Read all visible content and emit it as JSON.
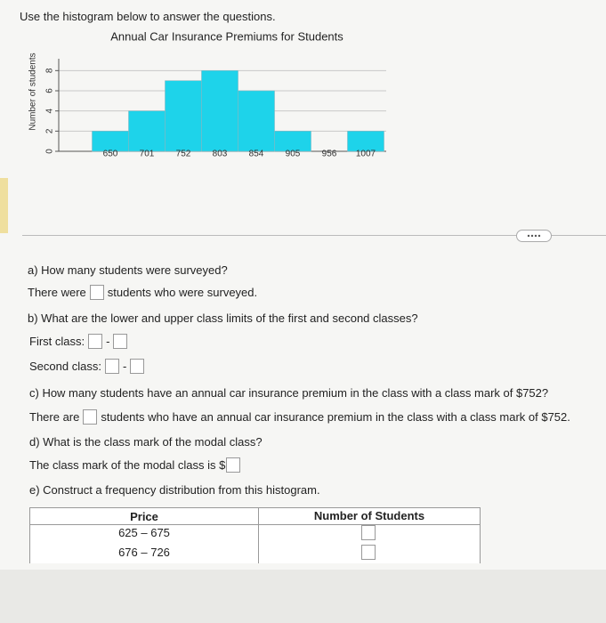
{
  "instruction": "Use the histogram below to answer the questions.",
  "chart_data": {
    "type": "histogram",
    "title": "Annual Car Insurance Premiums for Students",
    "ylabel": "Number of students",
    "categories": [
      "650",
      "701",
      "752",
      "803",
      "854",
      "905",
      "956",
      "1007"
    ],
    "values": [
      2,
      4,
      7,
      8,
      6,
      2,
      0,
      2
    ],
    "color": "#1ed3ea",
    "ylim": [
      0,
      9
    ],
    "yticks": [
      0,
      2,
      4,
      6,
      8
    ],
    "grid": true
  },
  "questions": {
    "a": {
      "prompt": "a) How many students were surveyed?",
      "before": "There were",
      "after": "students who were surveyed."
    },
    "b": {
      "prompt": "b) What are the lower and upper class limits of the first and second classes?",
      "first": "First class:",
      "second": "Second class:",
      "separator": "-"
    },
    "c": {
      "prompt": "c) How many students have an annual car insurance premium in the class with a class mark of $752?",
      "before": "There are",
      "after": "students who have an annual car insurance premium in the class with a class mark of $752."
    },
    "d": {
      "prompt": "d) What is the class mark of the modal class?",
      "before": "The class mark of the modal class is $"
    },
    "e": {
      "prompt": "e) Construct a frequency distribution from this histogram."
    }
  },
  "table": {
    "headers": [
      "Price",
      "Number of Students"
    ],
    "rows": [
      [
        "625 – 675"
      ],
      [
        "676 – 726"
      ]
    ]
  }
}
